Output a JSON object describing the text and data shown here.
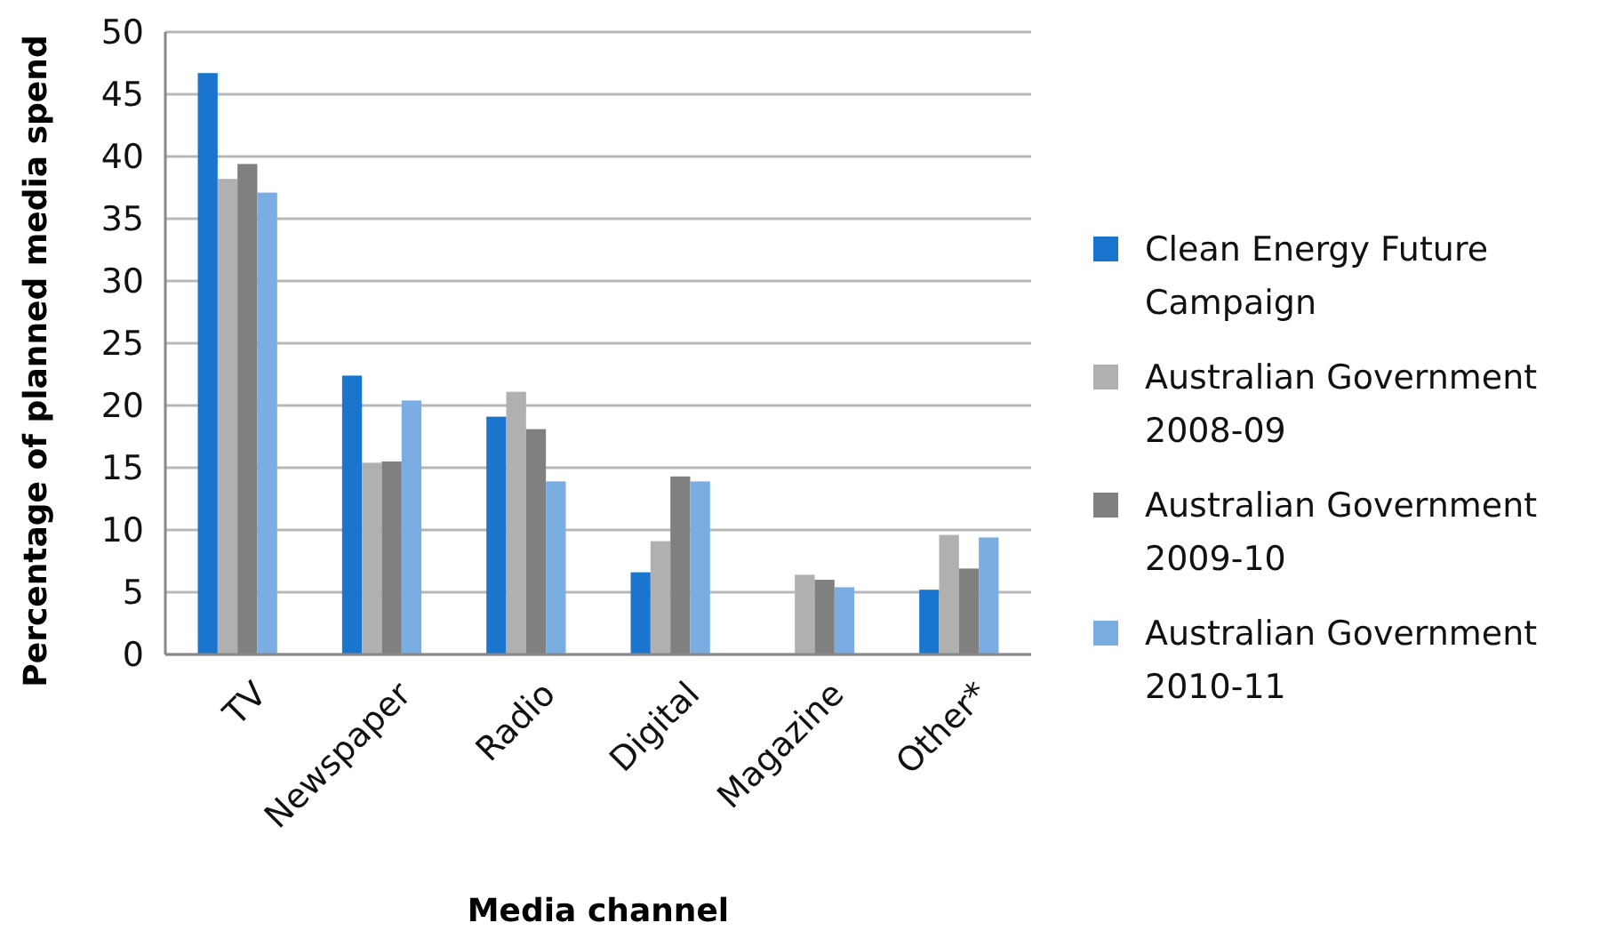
{
  "chart_data": {
    "type": "bar",
    "xlabel": "Media channel",
    "ylabel": "Percentage of planned media spend",
    "categories": [
      "TV",
      "Newspaper",
      "Radio",
      "Digital",
      "Magazine",
      "Other*"
    ],
    "series": [
      {
        "name": "Clean Energy  Future Campaign",
        "color": "#1a75cf",
        "values": [
          46.7,
          22.4,
          19.1,
          6.6,
          null,
          5.2
        ]
      },
      {
        "name": "Australian Government 2008-09",
        "color": "#b0b0b0",
        "values": [
          38.2,
          15.4,
          21.1,
          9.1,
          6.4,
          9.6
        ]
      },
      {
        "name": "Australian Government 2009-10",
        "color": "#808080",
        "values": [
          39.4,
          15.5,
          18.1,
          14.3,
          6.0,
          6.9
        ]
      },
      {
        "name": "Australian Government 2010-11",
        "color": "#7aade2",
        "values": [
          37.1,
          20.4,
          13.9,
          13.9,
          5.4,
          9.4
        ]
      }
    ],
    "ylim": [
      0,
      50
    ],
    "yticks": [
      0,
      5,
      10,
      15,
      20,
      25,
      30,
      35,
      40,
      45,
      50
    ],
    "grid": "y",
    "legend": "right"
  }
}
